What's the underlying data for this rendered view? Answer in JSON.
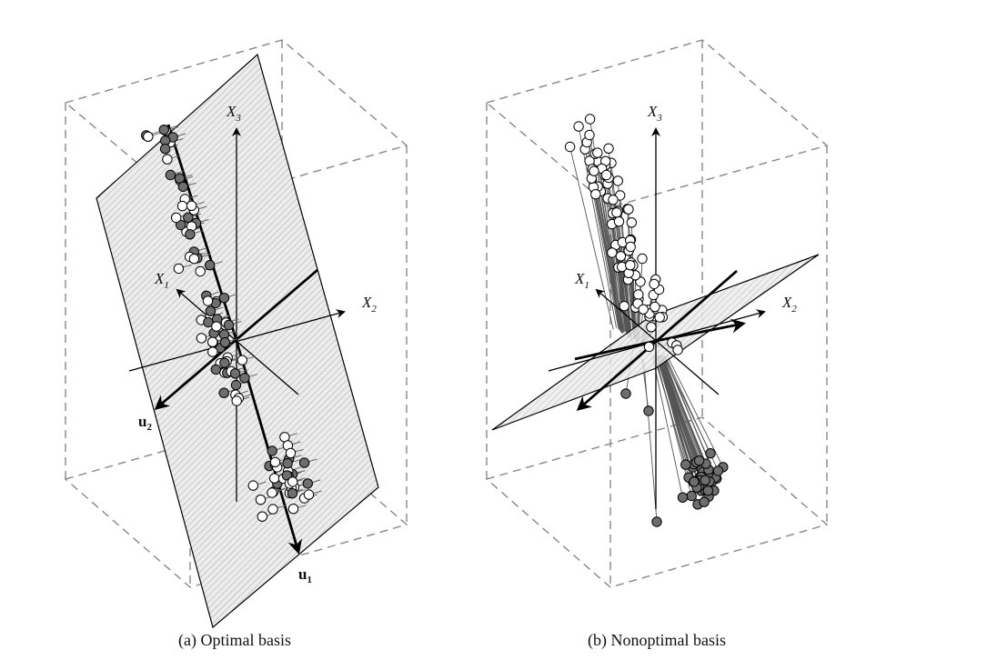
{
  "panels": [
    {
      "id": "a",
      "caption": "(a) Optimal basis",
      "axis_labels": {
        "x1": "X",
        "x1_sub": "1",
        "x2": "X",
        "x2_sub": "2",
        "x3": "X",
        "x3_sub": "3"
      },
      "vector_labels": {
        "u1": "u",
        "u1_sub": "1",
        "u2": "u",
        "u2_sub": "2"
      }
    },
    {
      "id": "b",
      "caption": "(b) Nonoptimal basis",
      "axis_labels": {
        "x1": "X",
        "x1_sub": "1",
        "x2": "X",
        "x2_sub": "2",
        "x3": "X",
        "x3_sub": "3"
      }
    }
  ],
  "colors": {
    "point_fill_dark": "#6e6e6e",
    "point_fill_light": "#ffffff",
    "plane_fill": "#e6e6e6",
    "box_dash": "#888888",
    "axis": "#000000"
  }
}
